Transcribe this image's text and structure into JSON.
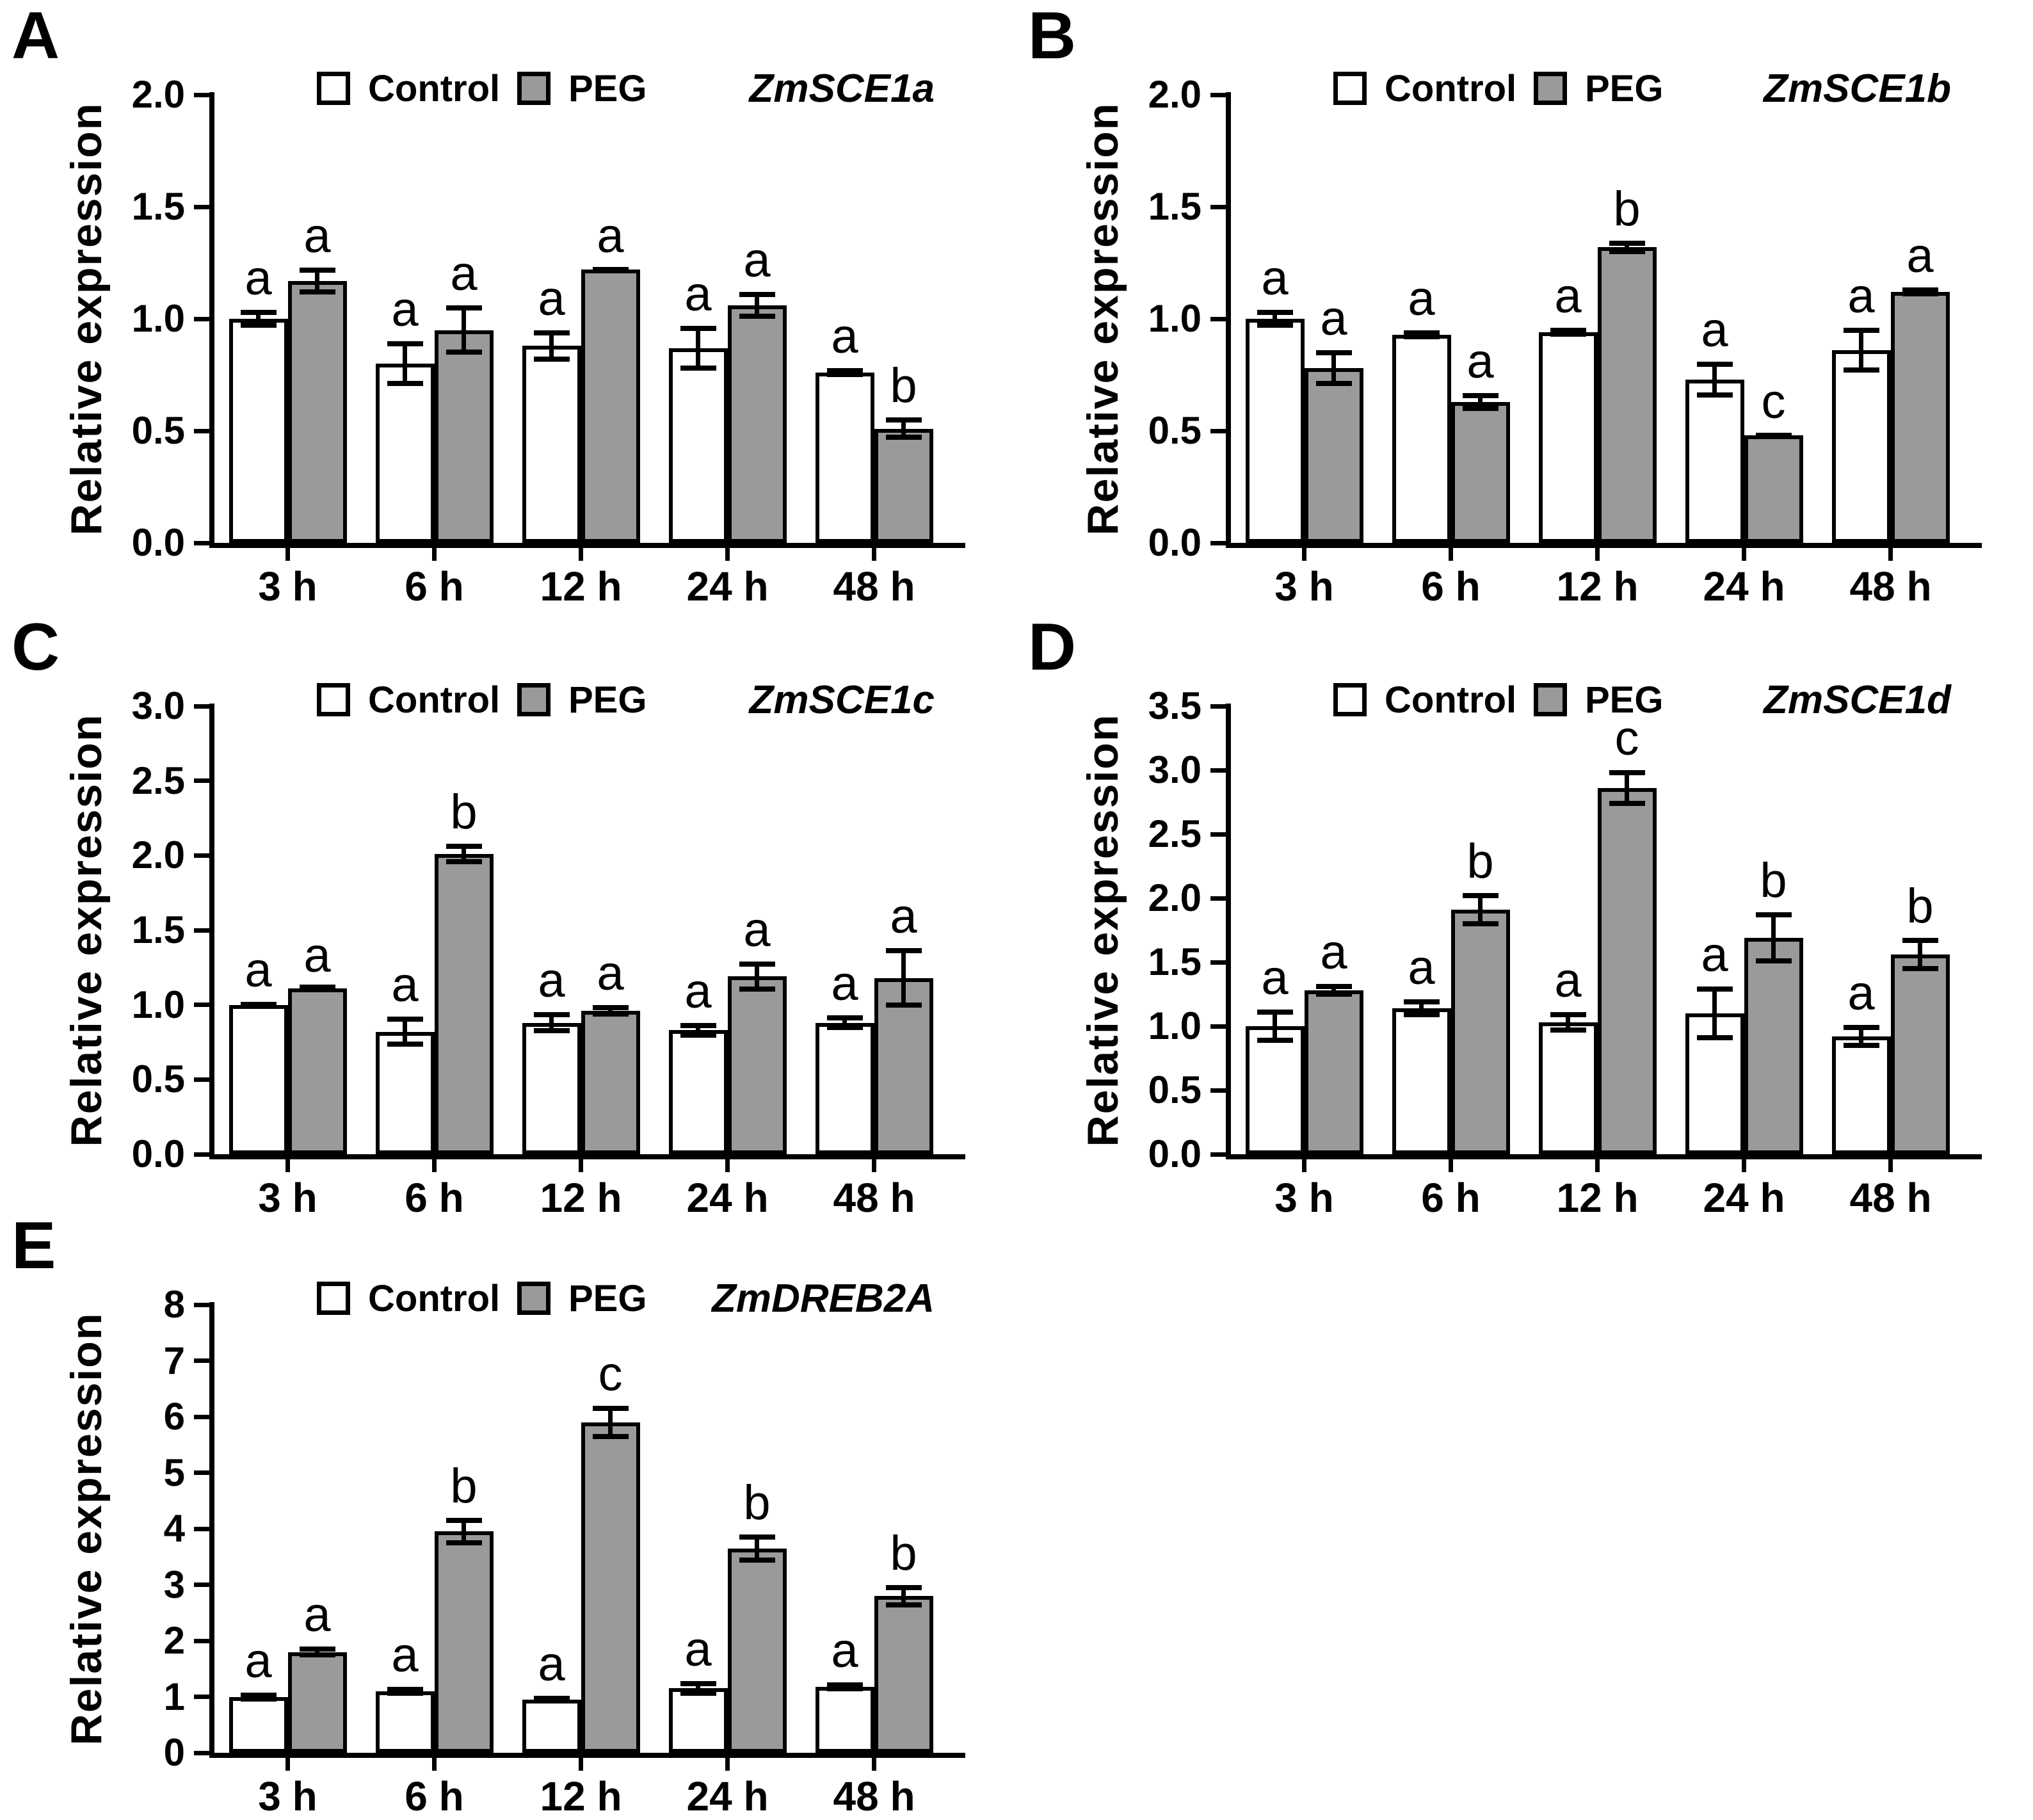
{
  "figure": {
    "background": "#ffffff",
    "colors": {
      "control_fill": "#ffffff",
      "peg_fill": "#9a9a9a",
      "bar_border": "#000000",
      "text": "#000000"
    },
    "legend": {
      "control_label": "Control",
      "peg_label": "PEG",
      "position": "top-inside"
    }
  },
  "chart_data": [
    {
      "panel": "A",
      "gene": "ZmSCE1a",
      "type": "bar",
      "ylabel": "Relative expression",
      "xlabel": "",
      "ylim": [
        0,
        2.0
      ],
      "y_ticks": [
        "0.0",
        "0.5",
        "1.0",
        "1.5",
        "2.0"
      ],
      "grid": false,
      "categories": [
        "3 h",
        "6 h",
        "12 h",
        "24 h",
        "48 h"
      ],
      "series": [
        {
          "name": "Control",
          "values": [
            1.0,
            0.8,
            0.88,
            0.87,
            0.76
          ],
          "errors": [
            0.04,
            0.1,
            0.07,
            0.1,
            0.02
          ],
          "letters": [
            "a",
            "a",
            "a",
            "a",
            "a"
          ]
        },
        {
          "name": "PEG",
          "values": [
            1.17,
            0.95,
            1.22,
            1.06,
            0.51
          ],
          "errors": [
            0.06,
            0.11,
            0.01,
            0.06,
            0.05
          ],
          "letters": [
            "a",
            "a",
            "a",
            "a",
            "b"
          ]
        }
      ]
    },
    {
      "panel": "B",
      "gene": "ZmSCE1b",
      "type": "bar",
      "ylabel": "Relative expression",
      "xlabel": "",
      "ylim": [
        0,
        2.0
      ],
      "y_ticks": [
        "0.0",
        "0.5",
        "1.0",
        "1.5",
        "2.0"
      ],
      "grid": false,
      "categories": [
        "3 h",
        "6 h",
        "12 h",
        "24 h",
        "48 h"
      ],
      "series": [
        {
          "name": "Control",
          "values": [
            1.0,
            0.93,
            0.94,
            0.73,
            0.86
          ],
          "errors": [
            0.04,
            0.02,
            0.02,
            0.08,
            0.1
          ],
          "letters": [
            "a",
            "a",
            "a",
            "a",
            "a"
          ]
        },
        {
          "name": "PEG",
          "values": [
            0.78,
            0.63,
            1.32,
            0.48,
            1.12
          ],
          "errors": [
            0.08,
            0.04,
            0.03,
            0.01,
            0.02
          ],
          "letters": [
            "a",
            "a",
            "b",
            "c",
            "a"
          ]
        }
      ]
    },
    {
      "panel": "C",
      "gene": "ZmSCE1c",
      "type": "bar",
      "ylabel": "Relative expression",
      "xlabel": "",
      "ylim": [
        0,
        3.0
      ],
      "y_ticks": [
        "0.0",
        "0.5",
        "1.0",
        "1.5",
        "2.0",
        "2.5",
        "3.0"
      ],
      "grid": false,
      "categories": [
        "3 h",
        "6 h",
        "12 h",
        "24 h",
        "48 h"
      ],
      "series": [
        {
          "name": "Control",
          "values": [
            1.0,
            0.82,
            0.88,
            0.83,
            0.88
          ],
          "errors": [
            0.02,
            0.1,
            0.07,
            0.05,
            0.05
          ],
          "letters": [
            "a",
            "a",
            "a",
            "a",
            "a"
          ]
        },
        {
          "name": "PEG",
          "values": [
            1.11,
            2.01,
            0.96,
            1.19,
            1.18
          ],
          "errors": [
            0.01,
            0.07,
            0.04,
            0.1,
            0.2
          ],
          "letters": [
            "a",
            "b",
            "a",
            "a",
            "a"
          ]
        }
      ]
    },
    {
      "panel": "D",
      "gene": "ZmSCE1d",
      "type": "bar",
      "ylabel": "Relative expression",
      "xlabel": "",
      "ylim": [
        0,
        3.5
      ],
      "y_ticks": [
        "0.0",
        "0.5",
        "1.0",
        "1.5",
        "2.0",
        "2.5",
        "3.0",
        "3.5"
      ],
      "grid": false,
      "categories": [
        "3 h",
        "6 h",
        "12 h",
        "24 h",
        "48 h"
      ],
      "series": [
        {
          "name": "Control",
          "values": [
            1.0,
            1.14,
            1.03,
            1.1,
            0.92
          ],
          "errors": [
            0.13,
            0.07,
            0.08,
            0.21,
            0.09
          ],
          "letters": [
            "a",
            "a",
            "a",
            "a",
            "a"
          ]
        },
        {
          "name": "PEG",
          "values": [
            1.28,
            1.91,
            2.86,
            1.69,
            1.56
          ],
          "errors": [
            0.05,
            0.13,
            0.14,
            0.2,
            0.13
          ],
          "letters": [
            "a",
            "b",
            "c",
            "b",
            "b"
          ]
        }
      ]
    },
    {
      "panel": "E",
      "gene": "ZmDREB2A",
      "type": "bar",
      "ylabel": "Relative expression",
      "xlabel": "",
      "ylim": [
        0,
        8
      ],
      "y_ticks": [
        "0",
        "1",
        "2",
        "3",
        "4",
        "5",
        "6",
        "7",
        "8"
      ],
      "grid": false,
      "categories": [
        "3 h",
        "6 h",
        "12 h",
        "24 h",
        "48 h"
      ],
      "series": [
        {
          "name": "Control",
          "values": [
            1.0,
            1.1,
            0.95,
            1.15,
            1.18
          ],
          "errors": [
            0.08,
            0.08,
            0.07,
            0.13,
            0.08
          ],
          "letters": [
            "a",
            "a",
            "a",
            "a",
            "a"
          ]
        },
        {
          "name": "PEG",
          "values": [
            1.8,
            3.95,
            5.9,
            3.65,
            2.8
          ],
          "errors": [
            0.1,
            0.25,
            0.3,
            0.25,
            0.2
          ],
          "letters": [
            "a",
            "b",
            "c",
            "b",
            "b"
          ]
        }
      ]
    }
  ]
}
